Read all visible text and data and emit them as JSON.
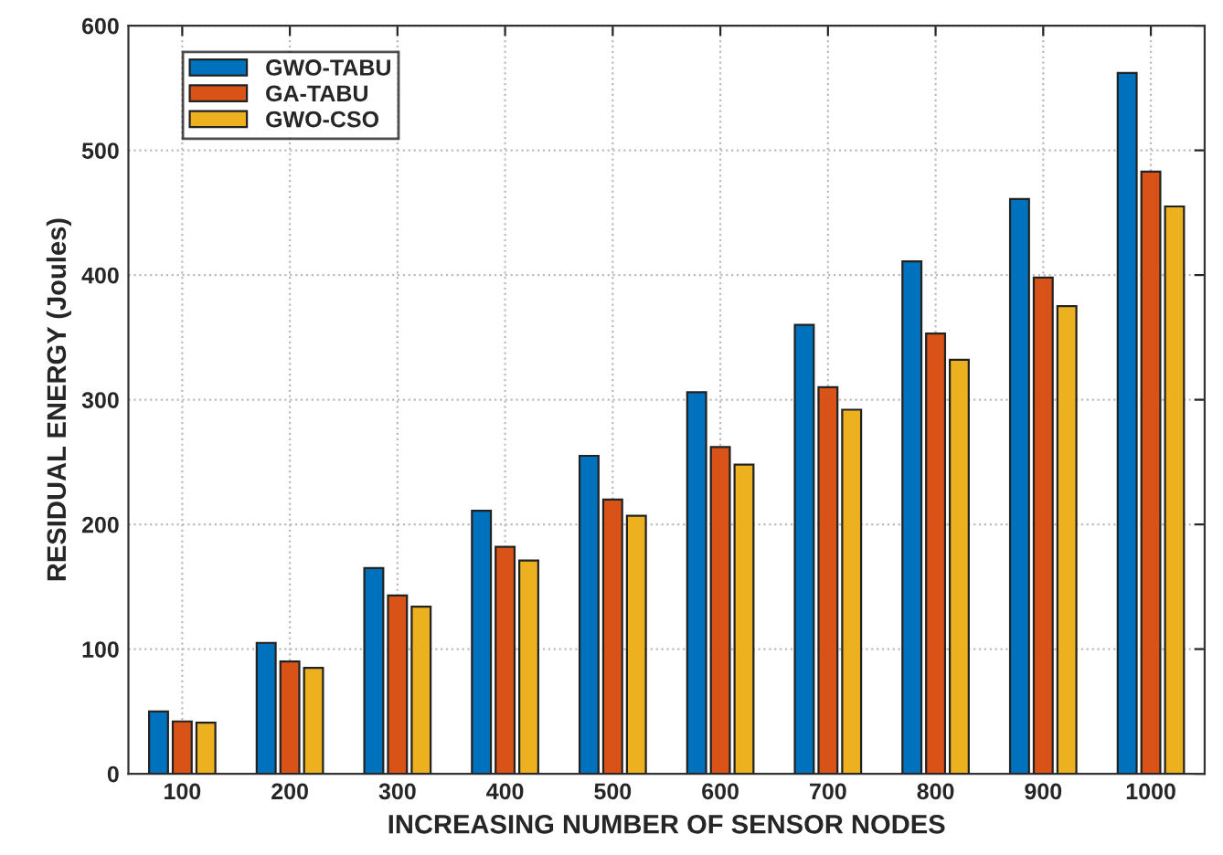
{
  "chart_data": {
    "type": "bar",
    "xlabel": "INCREASING NUMBER OF SENSOR NODES",
    "ylabel": "RESIDUAL ENERGY (Joules)",
    "categories": [
      "100",
      "200",
      "300",
      "400",
      "500",
      "600",
      "700",
      "800",
      "900",
      "1000"
    ],
    "series": [
      {
        "name": "GWO-TABU",
        "color": "#0072bd",
        "values": [
          50,
          105,
          165,
          211,
          255,
          306,
          360,
          411,
          461,
          562
        ]
      },
      {
        "name": "GA-TABU",
        "color": "#d95319",
        "values": [
          42,
          90,
          143,
          182,
          220,
          262,
          310,
          353,
          398,
          483
        ]
      },
      {
        "name": "GWO-CSO",
        "color": "#edb120",
        "values": [
          41,
          85,
          134,
          171,
          207,
          248,
          292,
          332,
          375,
          455
        ]
      }
    ],
    "ylim": [
      0,
      600
    ],
    "yticks": [
      0,
      100,
      200,
      300,
      400,
      500,
      600
    ],
    "grid": true,
    "legend": "top left"
  }
}
